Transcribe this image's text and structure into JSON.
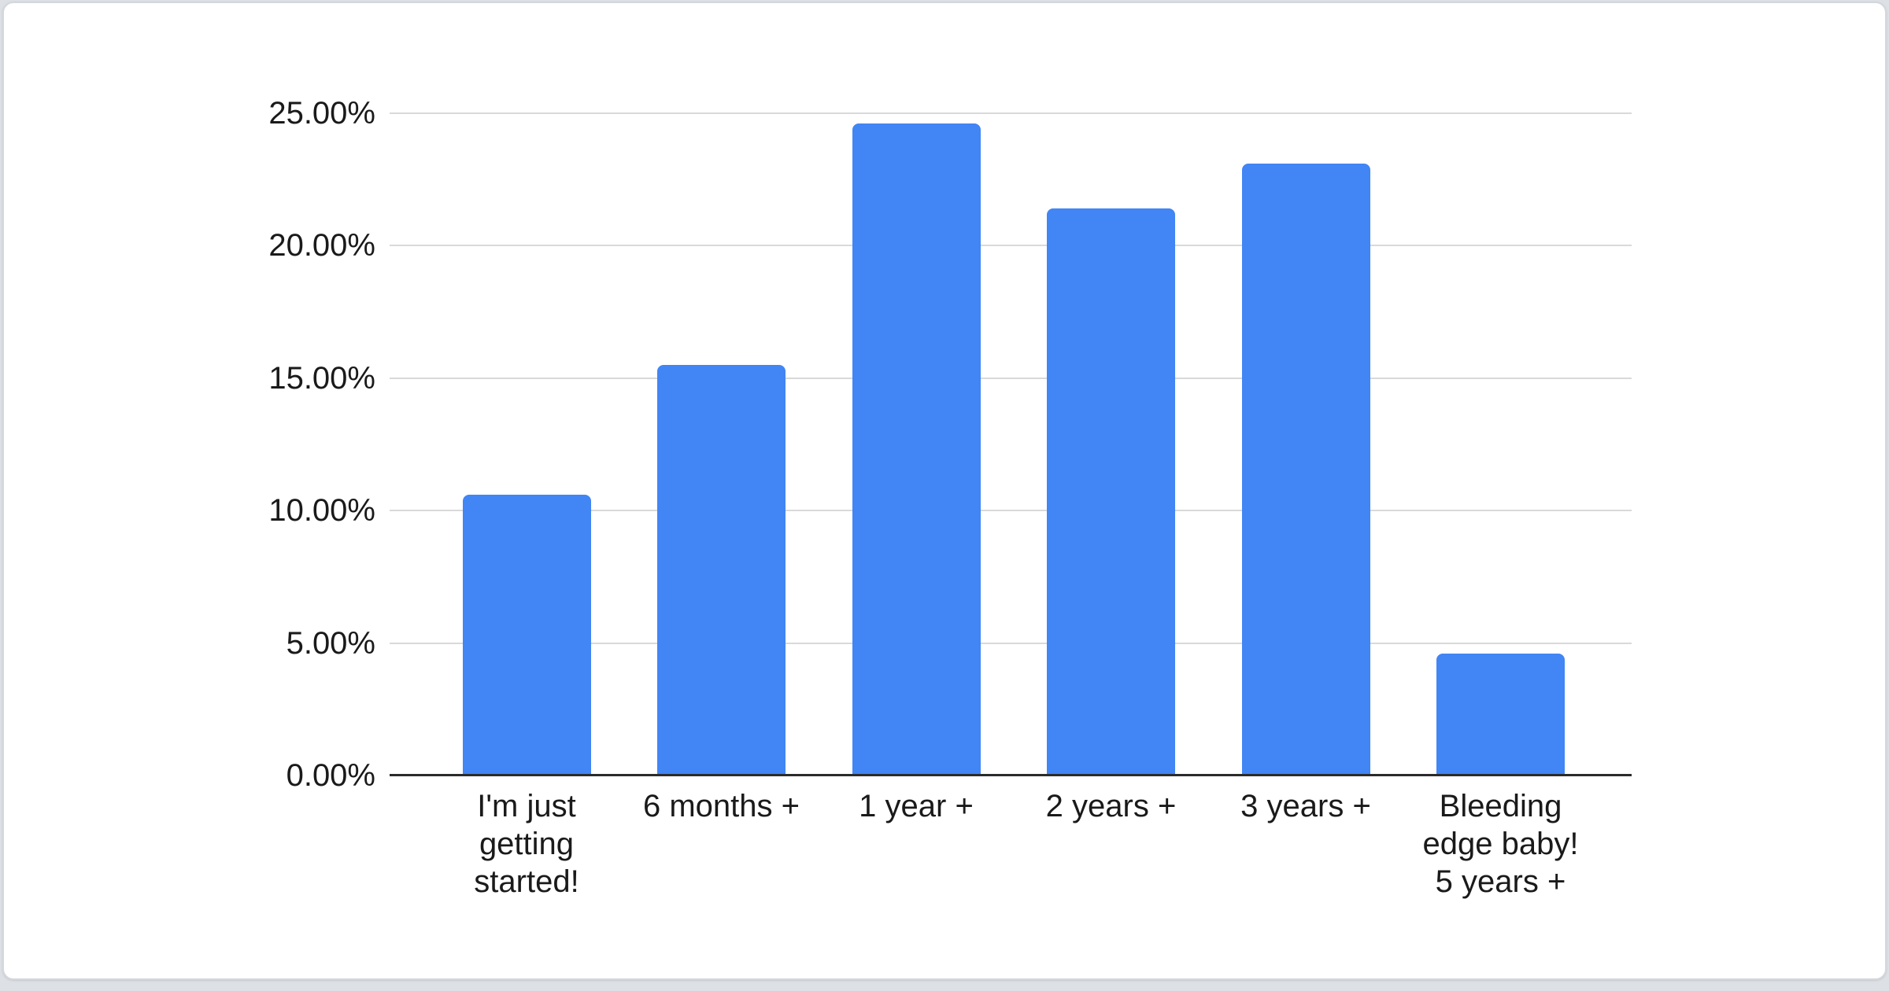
{
  "chart_data": {
    "type": "bar",
    "title": "",
    "xlabel": "",
    "ylabel": "",
    "categories": [
      "I'm just\ngetting\nstarted!",
      "6 months +",
      "1 year +",
      "2 years +",
      "3 years +",
      "Bleeding\nedge baby!\n5 years +"
    ],
    "values": [
      10.6,
      15.5,
      24.6,
      21.4,
      23.1,
      4.6
    ],
    "ylim": [
      0,
      25
    ],
    "yticks": [
      {
        "value": 0,
        "label": "0.00%"
      },
      {
        "value": 5,
        "label": "5.00%"
      },
      {
        "value": 10,
        "label": "10.00%"
      },
      {
        "value": 15,
        "label": "15.00%"
      },
      {
        "value": 20,
        "label": "20.00%"
      },
      {
        "value": 25,
        "label": "25.00%"
      }
    ],
    "grid": true,
    "legend": "none",
    "colors": {
      "bar": "#4285F4",
      "gridline": "#D9D9D9",
      "axis_line": "#2B2B2B",
      "label_text": "#1A1A1A",
      "card_background": "#FFFFFF",
      "page_background": "#DDE0E5",
      "card_border": "#D4D7DC"
    }
  }
}
